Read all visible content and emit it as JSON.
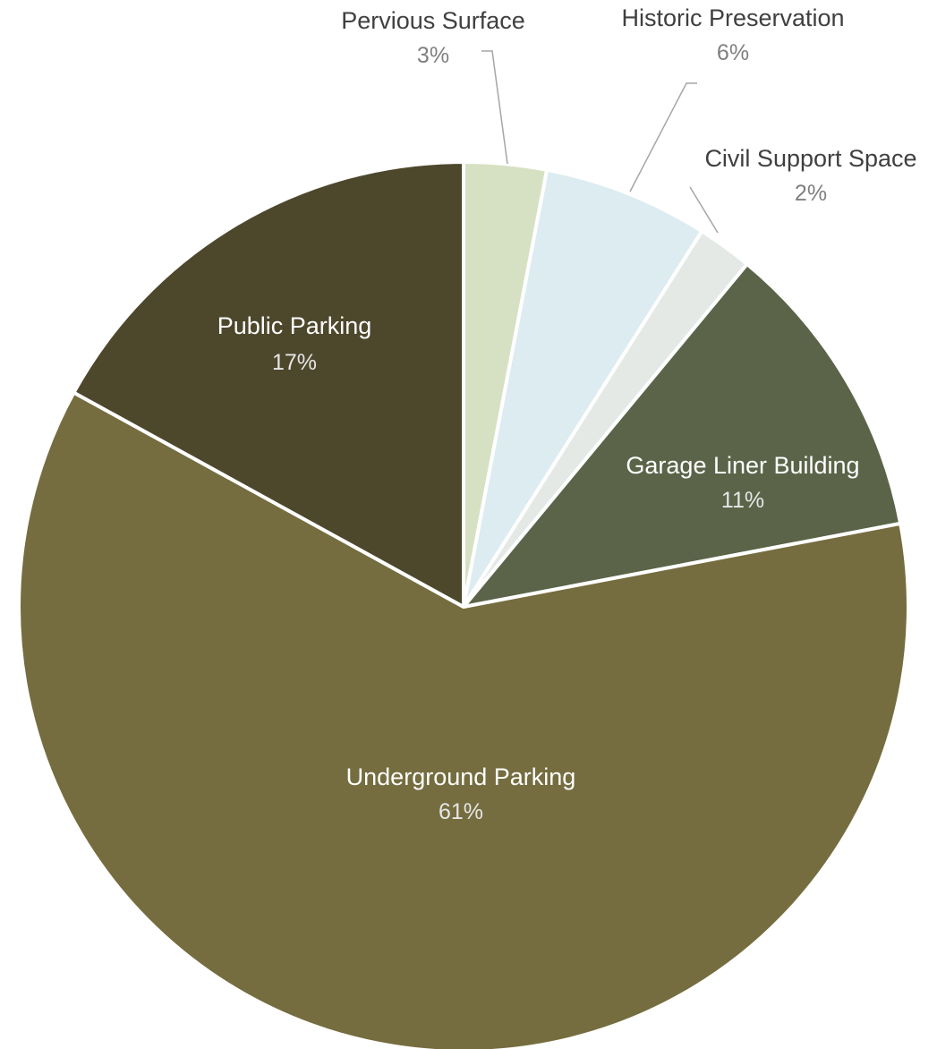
{
  "chart_data": {
    "type": "pie",
    "start_angle_deg": 0,
    "direction": "clockwise",
    "slices": [
      {
        "label": "Pervious Surface",
        "display": "3%",
        "value": 3,
        "color": "#d6e1c3",
        "label_placement": "outside"
      },
      {
        "label": "Historic Preservation",
        "display": "6%",
        "value": 6,
        "color": "#dcecf0",
        "label_placement": "outside"
      },
      {
        "label": "Civil Support Space",
        "display": "2%",
        "value": 2,
        "color": "#e4e9e6",
        "label_placement": "outside"
      },
      {
        "label": "Garage Liner Building",
        "display": "11%",
        "value": 11,
        "color": "#5b6448",
        "label_placement": "inside"
      },
      {
        "label": "Underground Parking",
        "display": "61%",
        "value": 61,
        "color": "#756d3f",
        "label_placement": "inside"
      },
      {
        "label": "Public Parking",
        "display": "17%",
        "value": 17,
        "color": "#4d472c",
        "label_placement": "inside"
      }
    ],
    "legend": "none",
    "colors": {
      "border": "#ffffff",
      "outside_label": "#404040",
      "outside_value": "#7f7f7f",
      "inside_label": "#ffffff",
      "inside_value": "#e6e6e6",
      "leader_line": "#a6a6a6"
    }
  }
}
